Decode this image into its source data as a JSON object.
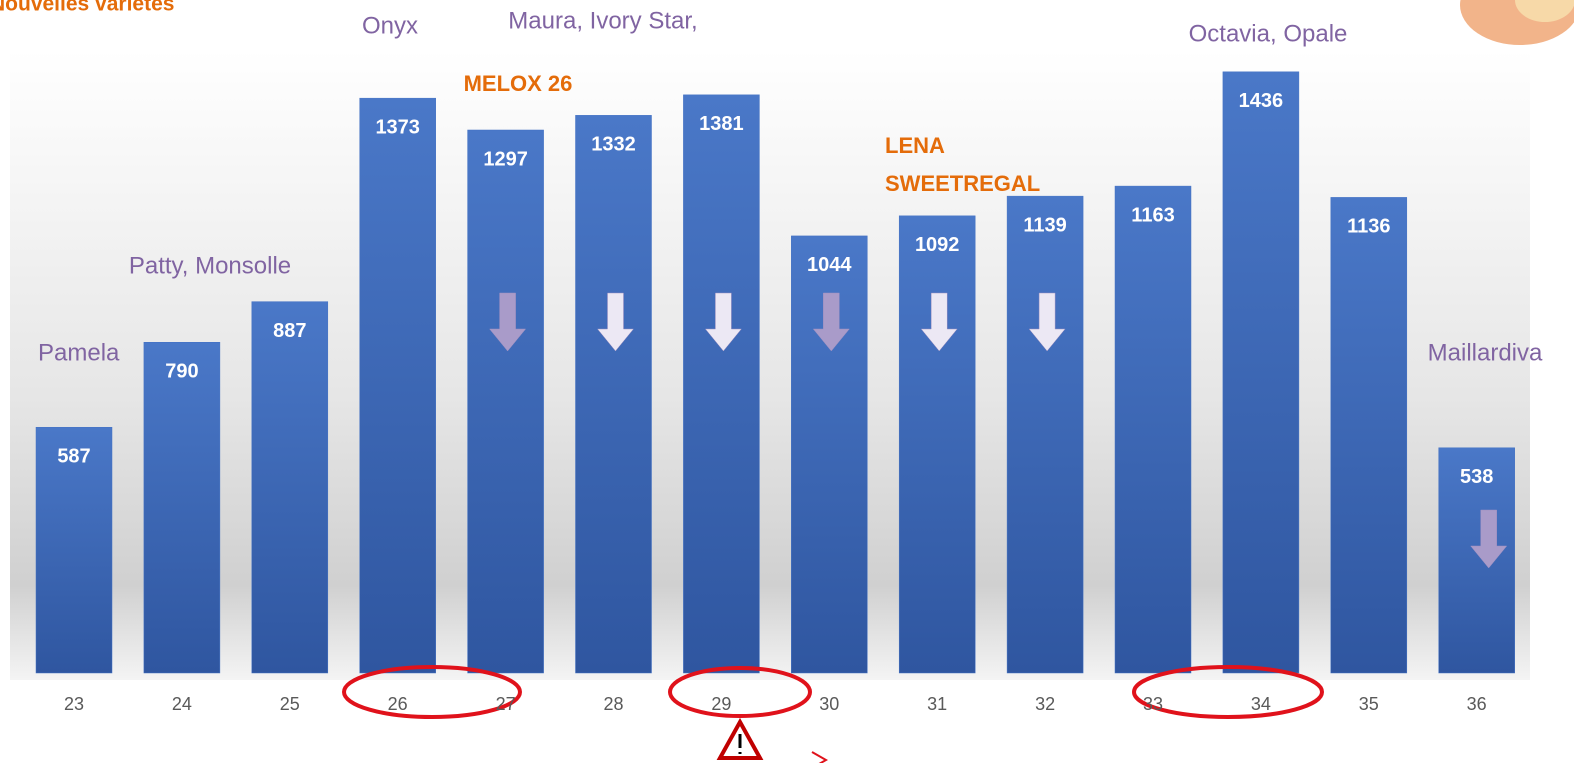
{
  "chart_data": {
    "type": "bar",
    "categories": [
      "23",
      "24",
      "25",
      "26",
      "27",
      "28",
      "29",
      "30",
      "31",
      "32",
      "33",
      "34",
      "35",
      "36"
    ],
    "values": [
      587,
      790,
      887,
      1373,
      1297,
      1332,
      1381,
      1044,
      1092,
      1139,
      1163,
      1436,
      1136,
      538
    ],
    "color": "#4472c4",
    "ylim": [
      0,
      1500
    ],
    "annotations": [
      {
        "text": "Nouvelles variétés",
        "color": "#e46c0a"
      },
      {
        "text": "Pamela",
        "category": "23",
        "color": "#8064a2"
      },
      {
        "text": "Patty, Monsolle",
        "category": "24",
        "color": "#8064a2"
      },
      {
        "text": "Onyx",
        "category": "26",
        "color": "#8064a2"
      },
      {
        "text": "Maura, Ivory Star,",
        "category": "28",
        "color": "#8064a2"
      },
      {
        "text": "MELOX 26",
        "category": "27",
        "color": "#e46c0a"
      },
      {
        "text": "LENA",
        "category": "31",
        "color": "#e46c0a"
      },
      {
        "text": "SWEETREGAL",
        "category": "31",
        "color": "#e46c0a"
      },
      {
        "text": "Octavia, Opale",
        "category": "34",
        "color": "#8064a2"
      },
      {
        "text": "Maillardiva",
        "category": "36",
        "color": "#8064a2"
      }
    ]
  }
}
